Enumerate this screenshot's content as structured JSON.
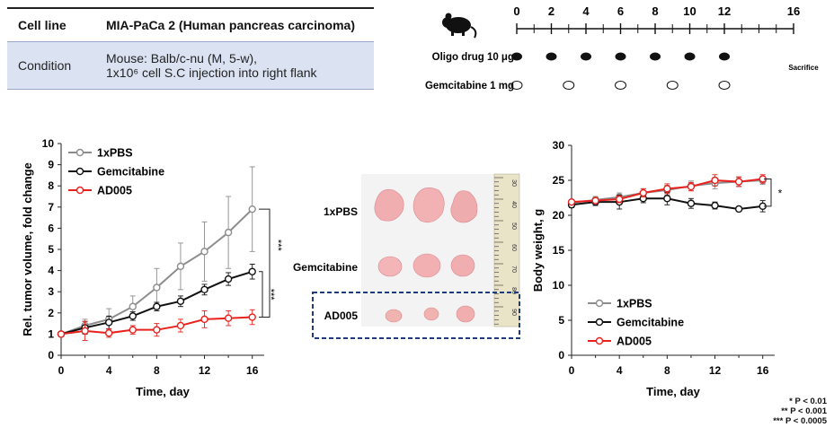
{
  "info": {
    "row1": {
      "label": "Cell line",
      "value": "MIA-PaCa 2 (Human pancreas carcinoma)"
    },
    "row2": {
      "label": "Condition",
      "value_line1": "Mouse: Balb/c-nu (M, 5-w),",
      "value_line2": "1x10⁶ cell S.C injection into right flank"
    }
  },
  "schedule": {
    "ticks": [
      0,
      2,
      4,
      6,
      8,
      10,
      12,
      16
    ],
    "oligo_label": "Oligo drug 10 μg",
    "oligo_days": [
      0,
      2,
      4,
      6,
      8,
      10,
      12
    ],
    "gem_label": "Gemcitabine 1 mg",
    "gem_days": [
      0,
      3,
      6,
      9,
      12
    ],
    "sacrifice_label": "Sacrifice",
    "mouse_icon": "mouse-icon"
  },
  "photo": {
    "labels": [
      "1xPBS",
      "Gemcitabine",
      "AD005"
    ],
    "ruler_marks": [
      "30",
      "40",
      "50",
      "60",
      "70",
      "80",
      "90"
    ],
    "highlight_color": "#1f3c7a"
  },
  "colors": {
    "pbs": "#8c8c8c",
    "gem": "#111111",
    "ad005": "#e8211d"
  },
  "chart_data": [
    {
      "type": "line",
      "xlabel": "Time, day",
      "ylabel": "Rel. tumor volume, fold change",
      "xlim": [
        0,
        17
      ],
      "ylim": [
        0,
        10
      ],
      "xticks": [
        0,
        4,
        8,
        12,
        16
      ],
      "yticks": [
        0,
        1,
        2,
        3,
        4,
        5,
        6,
        7,
        8,
        9,
        10
      ],
      "legend": "top-left",
      "x": [
        0,
        2,
        4,
        6,
        8,
        10,
        12,
        14,
        16
      ],
      "series": [
        {
          "name": "1xPBS",
          "values": [
            1,
            1.4,
            1.7,
            2.3,
            3.2,
            4.2,
            4.9,
            5.8,
            6.9
          ],
          "errors": [
            0,
            0.3,
            0.5,
            0.5,
            0.9,
            1.1,
            1.4,
            1.7,
            2.0
          ]
        },
        {
          "name": "Gemcitabine",
          "values": [
            1,
            1.3,
            1.55,
            1.85,
            2.3,
            2.55,
            3.1,
            3.6,
            3.95
          ],
          "errors": [
            0,
            0.3,
            0.3,
            0.2,
            0.2,
            0.25,
            0.25,
            0.3,
            0.35
          ]
        },
        {
          "name": "AD005",
          "values": [
            1,
            1.15,
            1.05,
            1.2,
            1.2,
            1.4,
            1.7,
            1.75,
            1.8
          ],
          "errors": [
            0,
            0.45,
            0.2,
            0.2,
            0.3,
            0.3,
            0.4,
            0.35,
            0.35
          ]
        }
      ],
      "annotations": [
        "***",
        "***"
      ]
    },
    {
      "type": "line",
      "xlabel": "Time, day",
      "ylabel": "Body weight, g",
      "xlim": [
        0,
        17
      ],
      "ylim": [
        0,
        30
      ],
      "xticks": [
        0,
        4,
        8,
        12,
        16
      ],
      "yticks": [
        0,
        5,
        10,
        15,
        20,
        25,
        30
      ],
      "legend": "bottom-left",
      "x": [
        0,
        2,
        4,
        6,
        8,
        10,
        12,
        14,
        16
      ],
      "series": [
        {
          "name": "1xPBS",
          "values": [
            21.8,
            22.2,
            22.6,
            23.2,
            23.6,
            24.2,
            24.6,
            24.8,
            25.0
          ],
          "errors": [
            0.3,
            0.5,
            0.6,
            0.6,
            0.7,
            0.7,
            0.8,
            0.6,
            0.6
          ]
        },
        {
          "name": "Gemcitabine",
          "values": [
            21.5,
            21.9,
            21.9,
            22.4,
            22.4,
            21.7,
            21.4,
            20.9,
            21.3
          ],
          "errors": [
            0.4,
            0.5,
            1.0,
            0.6,
            0.9,
            0.7,
            0.5,
            0.3,
            0.8
          ]
        },
        {
          "name": "AD005",
          "values": [
            21.9,
            22.1,
            22.3,
            23.2,
            23.8,
            24.1,
            25.0,
            24.8,
            25.2
          ],
          "errors": [
            0.3,
            0.4,
            0.5,
            0.6,
            0.7,
            0.6,
            0.8,
            0.7,
            0.6
          ]
        }
      ],
      "annotations": [
        "*"
      ]
    }
  ],
  "pvalues": [
    "* P < 0.01",
    "** P < 0.001",
    "*** P < 0.0005"
  ]
}
